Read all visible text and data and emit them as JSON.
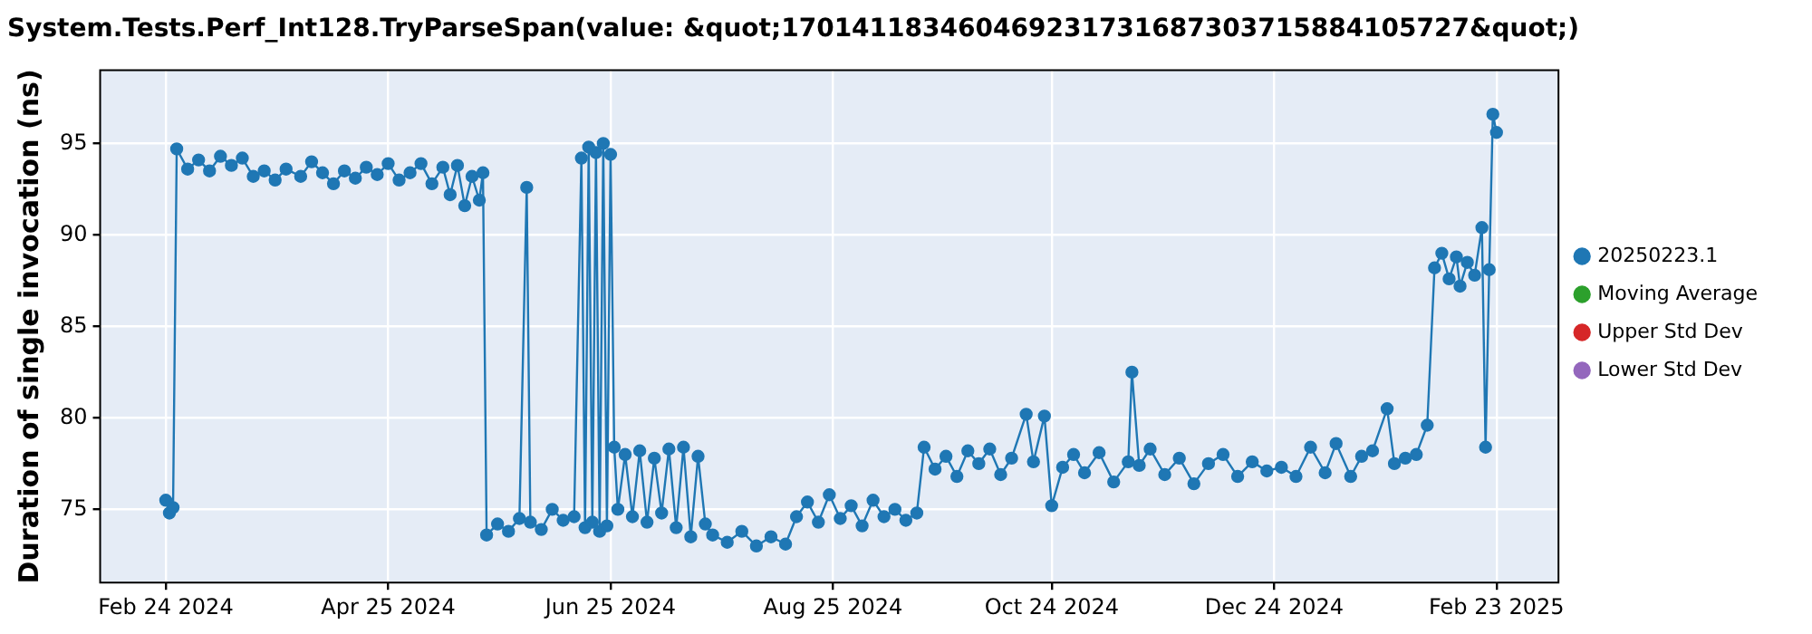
{
  "chart_data": {
    "type": "line",
    "title": "System.Tests.Perf_Int128.TryParseSpan(value: &quot;170141183460469231731687303715884105727&quot;)",
    "ylabel": "Duration of single invocation (ns)",
    "xlim": [
      "2024-02-06",
      "2025-03-12"
    ],
    "xticks": [
      {
        "value": "2024-02-24",
        "label": "Feb 24 2024"
      },
      {
        "value": "2024-04-25",
        "label": "Apr 25 2024"
      },
      {
        "value": "2024-06-25",
        "label": "Jun 25 2024"
      },
      {
        "value": "2024-08-25",
        "label": "Aug 25 2024"
      },
      {
        "value": "2024-10-24",
        "label": "Oct 24 2024"
      },
      {
        "value": "2024-12-24",
        "label": "Dec 24 2024"
      },
      {
        "value": "2025-02-23",
        "label": "Feb 23 2025"
      }
    ],
    "ylim": [
      71,
      99
    ],
    "yticks": [
      75,
      80,
      85,
      90,
      95
    ],
    "grid": true,
    "legend": "right",
    "marker": "circle",
    "line_style": "solid",
    "series": [
      {
        "name": "20250223.1",
        "color": "#1f77b4",
        "x": [
          "2024-02-24",
          "2024-02-25",
          "2024-02-26",
          "2024-02-27",
          "2024-03-01",
          "2024-03-04",
          "2024-03-07",
          "2024-03-10",
          "2024-03-13",
          "2024-03-16",
          "2024-03-19",
          "2024-03-22",
          "2024-03-25",
          "2024-03-28",
          "2024-04-01",
          "2024-04-04",
          "2024-04-07",
          "2024-04-10",
          "2024-04-13",
          "2024-04-16",
          "2024-04-19",
          "2024-04-22",
          "2024-04-25",
          "2024-04-28",
          "2024-05-01",
          "2024-05-04",
          "2024-05-07",
          "2024-05-10",
          "2024-05-12",
          "2024-05-14",
          "2024-05-16",
          "2024-05-18",
          "2024-05-20",
          "2024-05-21",
          "2024-05-22",
          "2024-05-25",
          "2024-05-28",
          "2024-05-31",
          "2024-06-02",
          "2024-06-03",
          "2024-06-06",
          "2024-06-09",
          "2024-06-12",
          "2024-06-15",
          "2024-06-17",
          "2024-06-18",
          "2024-06-19",
          "2024-06-20",
          "2024-06-21",
          "2024-06-22",
          "2024-06-23",
          "2024-06-24",
          "2024-06-25",
          "2024-06-26",
          "2024-06-27",
          "2024-06-29",
          "2024-07-01",
          "2024-07-03",
          "2024-07-05",
          "2024-07-07",
          "2024-07-09",
          "2024-07-11",
          "2024-07-13",
          "2024-07-15",
          "2024-07-17",
          "2024-07-19",
          "2024-07-21",
          "2024-07-23",
          "2024-07-27",
          "2024-07-31",
          "2024-08-04",
          "2024-08-08",
          "2024-08-12",
          "2024-08-15",
          "2024-08-18",
          "2024-08-21",
          "2024-08-24",
          "2024-08-27",
          "2024-08-30",
          "2024-09-02",
          "2024-09-05",
          "2024-09-08",
          "2024-09-11",
          "2024-09-14",
          "2024-09-17",
          "2024-09-19",
          "2024-09-22",
          "2024-09-25",
          "2024-09-28",
          "2024-10-01",
          "2024-10-04",
          "2024-10-07",
          "2024-10-10",
          "2024-10-13",
          "2024-10-17",
          "2024-10-19",
          "2024-10-22",
          "2024-10-24",
          "2024-10-27",
          "2024-10-30",
          "2024-11-02",
          "2024-11-06",
          "2024-11-10",
          "2024-11-14",
          "2024-11-15",
          "2024-11-17",
          "2024-11-20",
          "2024-11-24",
          "2024-11-28",
          "2024-12-02",
          "2024-12-06",
          "2024-12-10",
          "2024-12-14",
          "2024-12-18",
          "2024-12-22",
          "2024-12-26",
          "2024-12-30",
          "2025-01-03",
          "2025-01-07",
          "2025-01-10",
          "2025-01-14",
          "2025-01-17",
          "2025-01-20",
          "2025-01-24",
          "2025-01-26",
          "2025-01-29",
          "2025-02-01",
          "2025-02-04",
          "2025-02-06",
          "2025-02-08",
          "2025-02-10",
          "2025-02-12",
          "2025-02-13",
          "2025-02-15",
          "2025-02-17",
          "2025-02-19",
          "2025-02-20",
          "2025-02-21",
          "2025-02-22",
          "2025-02-23"
        ],
        "values": [
          75.5,
          74.8,
          75.1,
          94.7,
          93.6,
          94.1,
          93.5,
          94.3,
          93.8,
          94.2,
          93.2,
          93.5,
          93.0,
          93.6,
          93.2,
          94.0,
          93.4,
          92.8,
          93.5,
          93.1,
          93.7,
          93.3,
          93.9,
          93.0,
          93.4,
          93.9,
          92.8,
          93.7,
          92.2,
          93.8,
          91.6,
          93.2,
          91.9,
          93.4,
          73.6,
          74.2,
          73.8,
          74.5,
          92.6,
          74.3,
          73.9,
          75.0,
          74.4,
          74.6,
          94.2,
          74.0,
          94.8,
          74.3,
          94.5,
          73.8,
          95.0,
          74.1,
          94.4,
          78.4,
          75.0,
          78.0,
          74.6,
          78.2,
          74.3,
          77.8,
          74.8,
          78.3,
          74.0,
          78.4,
          73.5,
          77.9,
          74.2,
          73.6,
          73.2,
          73.8,
          73.0,
          73.5,
          73.1,
          74.6,
          75.4,
          74.3,
          75.8,
          74.5,
          75.2,
          74.1,
          75.5,
          74.6,
          75.0,
          74.4,
          74.8,
          78.4,
          77.2,
          77.9,
          76.8,
          78.2,
          77.5,
          78.3,
          76.9,
          77.8,
          80.2,
          77.6,
          80.1,
          75.2,
          77.3,
          78.0,
          77.0,
          78.1,
          76.5,
          77.6,
          82.5,
          77.4,
          78.3,
          76.9,
          77.8,
          76.4,
          77.5,
          78.0,
          76.8,
          77.6,
          77.1,
          77.3,
          76.8,
          78.4,
          77.0,
          78.6,
          76.8,
          77.9,
          78.2,
          80.5,
          77.5,
          77.8,
          78.0,
          79.6,
          88.2,
          89.0,
          87.6,
          88.8,
          87.2,
          88.5,
          87.8,
          90.4,
          78.4,
          88.1,
          96.6,
          95.6
        ]
      },
      {
        "name": "Moving Average",
        "color": "#2ca02c"
      },
      {
        "name": "Upper Std Dev",
        "color": "#d62728"
      },
      {
        "name": "Lower Std Dev",
        "color": "#9467bd"
      }
    ]
  }
}
